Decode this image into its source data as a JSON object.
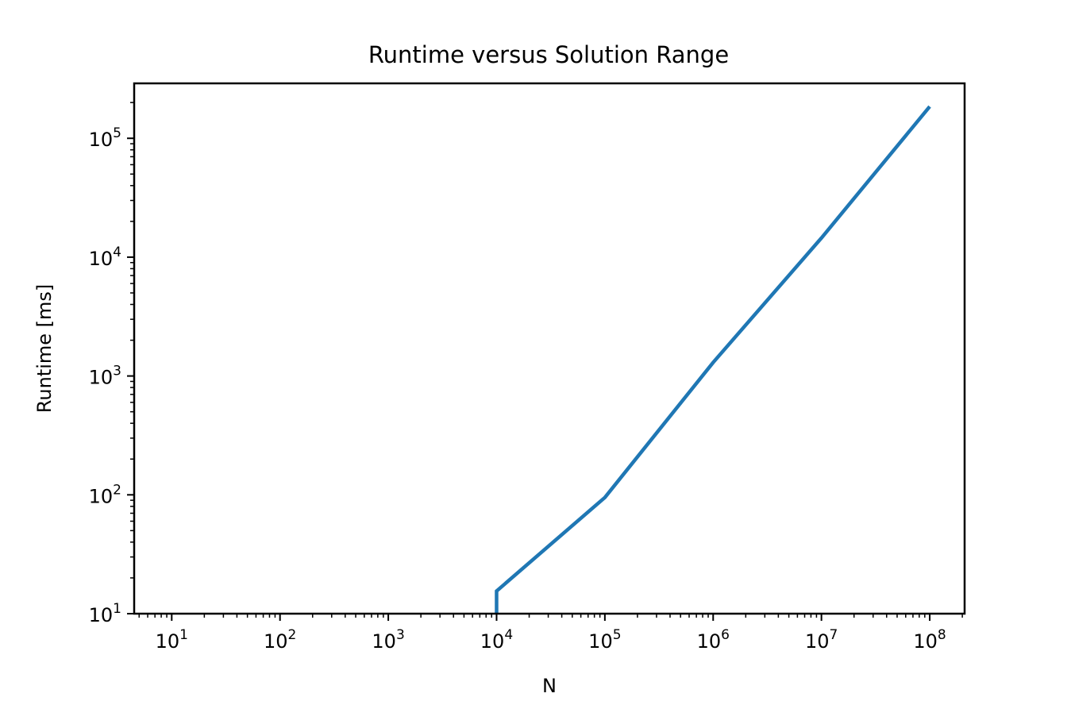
{
  "chart_data": {
    "type": "line",
    "title": "Runtime versus Solution Range",
    "xlabel": "N",
    "ylabel": "Runtime [ms]",
    "xscale": "log",
    "yscale": "log",
    "xlim": [
      4.5,
      210000000
    ],
    "ylim": [
      10,
      290000
    ],
    "grid": false,
    "x_ticks": [
      {
        "base": "10",
        "exp": "1",
        "value": 10
      },
      {
        "base": "10",
        "exp": "2",
        "value": 100
      },
      {
        "base": "10",
        "exp": "3",
        "value": 1000
      },
      {
        "base": "10",
        "exp": "4",
        "value": 10000
      },
      {
        "base": "10",
        "exp": "5",
        "value": 100000
      },
      {
        "base": "10",
        "exp": "6",
        "value": 1000000
      },
      {
        "base": "10",
        "exp": "7",
        "value": 10000000
      },
      {
        "base": "10",
        "exp": "8",
        "value": 100000000
      }
    ],
    "y_ticks": [
      {
        "base": "10",
        "exp": "1",
        "value": 10
      },
      {
        "base": "10",
        "exp": "2",
        "value": 100
      },
      {
        "base": "10",
        "exp": "3",
        "value": 1000
      },
      {
        "base": "10",
        "exp": "4",
        "value": 10000
      },
      {
        "base": "10",
        "exp": "5",
        "value": 100000
      }
    ],
    "series": [
      {
        "color": "#1f77b4",
        "x": [
          10000,
          10000,
          100000,
          1000000,
          10000000,
          100000000
        ],
        "y": [
          10,
          15.5,
          95,
          1300,
          14500,
          185000
        ]
      }
    ]
  }
}
